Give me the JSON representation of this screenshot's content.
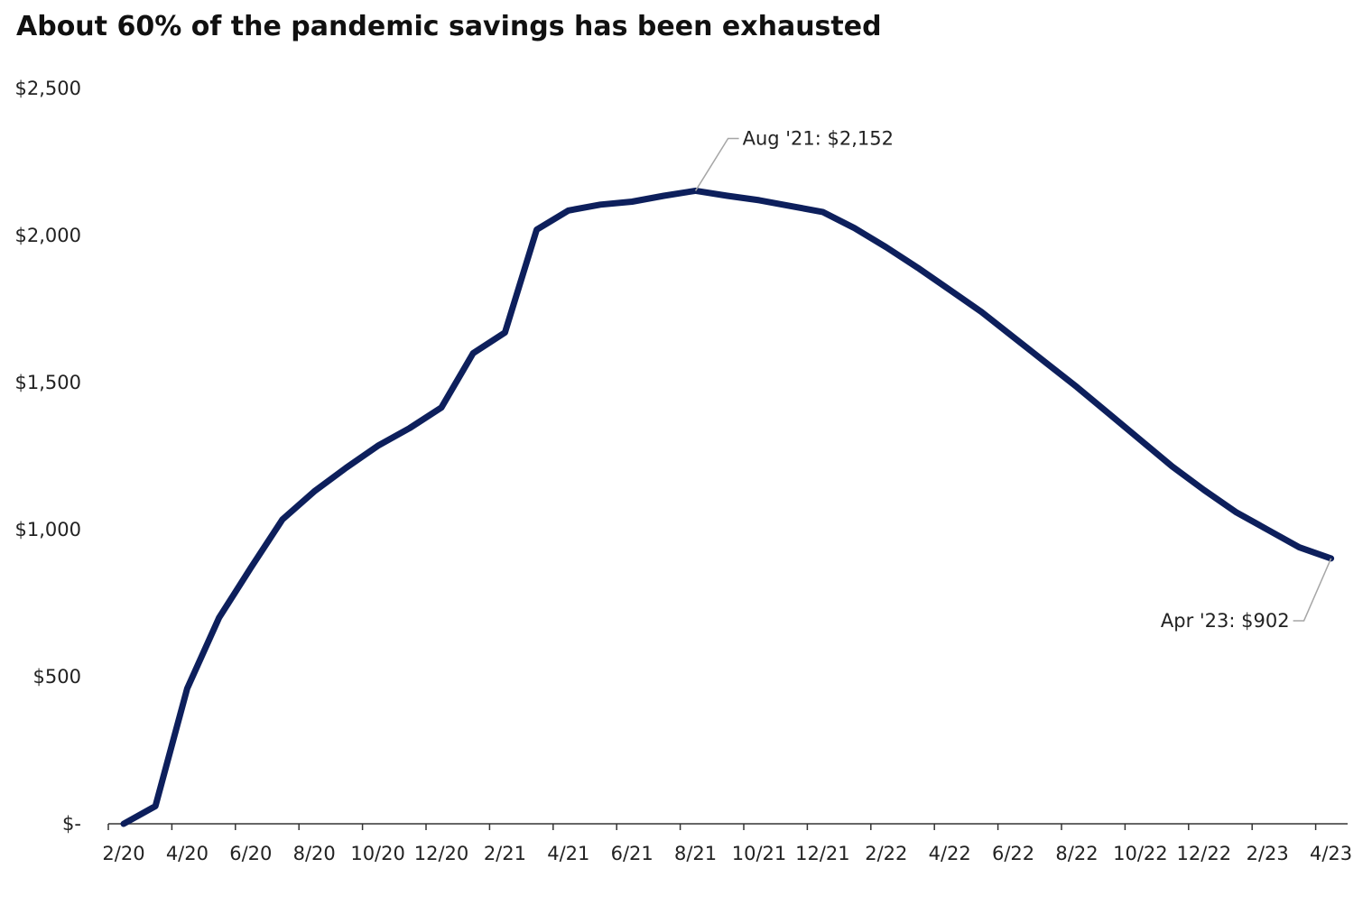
{
  "chart_data": {
    "type": "line",
    "title": "About 60% of the pandemic savings has been exhausted",
    "xlabel": "",
    "ylabel": "",
    "ylim": [
      0,
      2500
    ],
    "y_ticks": [
      {
        "value": 0,
        "label": "$-"
      },
      {
        "value": 500,
        "label": "$500"
      },
      {
        "value": 1000,
        "label": "$1,000"
      },
      {
        "value": 1500,
        "label": "$1,500"
      },
      {
        "value": 2000,
        "label": "$2,000"
      },
      {
        "value": 2500,
        "label": "$2,500"
      }
    ],
    "x_tick_labels": [
      "2/20",
      "4/20",
      "6/20",
      "8/20",
      "10/20",
      "12/20",
      "2/21",
      "4/21",
      "6/21",
      "8/21",
      "10/21",
      "12/21",
      "2/22",
      "4/22",
      "6/22",
      "8/22",
      "10/22",
      "12/22",
      "2/23",
      "4/23"
    ],
    "grid": false,
    "legend": "none",
    "line_color": "#0d1f5c",
    "series": [
      {
        "x": [
          "2/20",
          "3/20",
          "4/20",
          "5/20",
          "6/20",
          "7/20",
          "8/20",
          "9/20",
          "10/20",
          "11/20",
          "12/20",
          "1/21",
          "2/21",
          "3/21",
          "4/21",
          "5/21",
          "6/21",
          "7/21",
          "8/21",
          "9/21",
          "10/21",
          "11/21",
          "12/21",
          "1/22",
          "2/22",
          "3/22",
          "4/22",
          "5/22",
          "6/22",
          "7/22",
          "8/22",
          "9/22",
          "10/22",
          "11/22",
          "12/22",
          "1/23",
          "2/23",
          "3/23",
          "4/23"
        ],
        "values": [
          0,
          60,
          460,
          700,
          870,
          1035,
          1130,
          1210,
          1285,
          1345,
          1415,
          1600,
          1670,
          2020,
          2085,
          2105,
          2115,
          2135,
          2152,
          2135,
          2120,
          2100,
          2080,
          2025,
          1960,
          1890,
          1815,
          1740,
          1655,
          1570,
          1485,
          1395,
          1305,
          1215,
          1135,
          1060,
          1000,
          940,
          902
        ]
      }
    ],
    "annotations": [
      {
        "x": "8/21",
        "y": 2152,
        "label": "Aug '21:  $2,152"
      },
      {
        "x": "4/23",
        "y": 902,
        "label": "Apr '23:  $902"
      }
    ]
  }
}
